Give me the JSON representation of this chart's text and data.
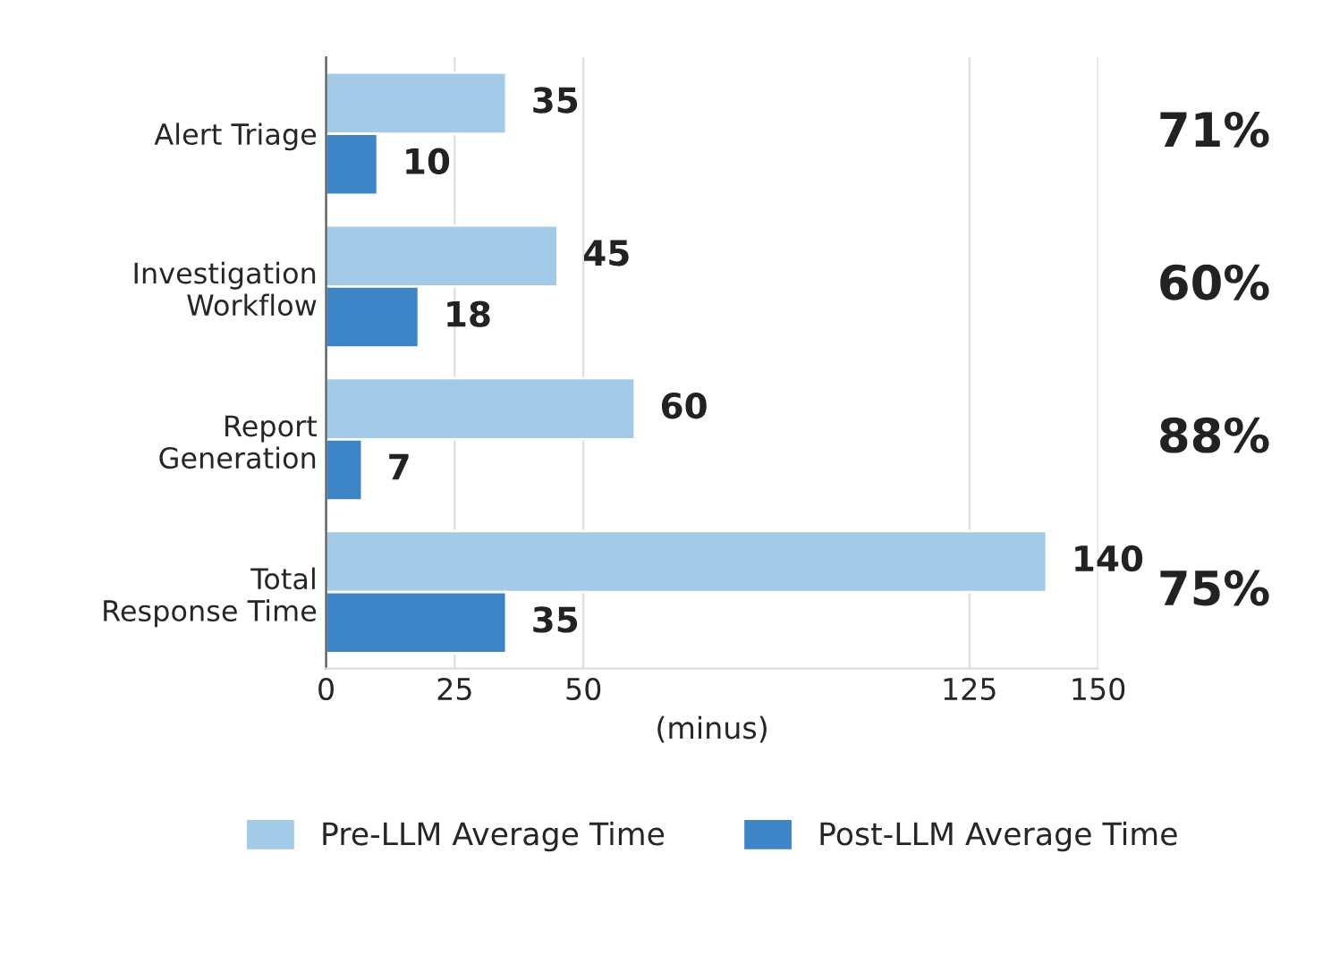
{
  "chart_data": {
    "type": "bar",
    "orientation": "horizontal",
    "categories": [
      "Alert Triage",
      "Investigation\nWorkflow",
      "Report\nGeneration",
      "Total\nResponse Time"
    ],
    "series": [
      {
        "name": "Pre-LLM Average Time",
        "color": "#a3cbe8",
        "values": [
          35,
          45,
          60,
          140
        ]
      },
      {
        "name": "Post-LLM Average Time",
        "color": "#3d85c6",
        "values": [
          10,
          18,
          7,
          35
        ]
      }
    ],
    "xlabel": "(minus)",
    "xlim": [
      0,
      150
    ],
    "xticks": [
      0,
      25,
      50,
      125,
      150
    ],
    "grid": "x",
    "legend": "bottom",
    "data_labels": true,
    "annotations": [
      "71%",
      "60%",
      "88%",
      "75%"
    ]
  }
}
